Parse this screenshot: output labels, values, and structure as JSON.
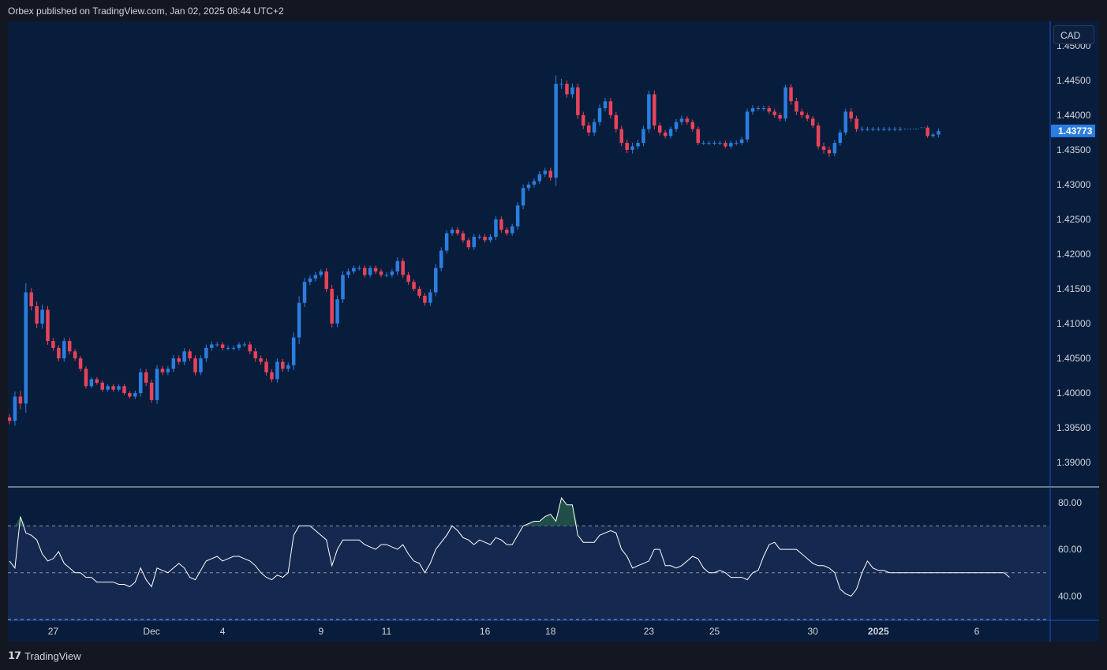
{
  "header": {
    "published": "Orbex published on TradingView.com, Jan 02, 2025 08:44 UTC+2"
  },
  "currency_button": "CAD",
  "footer": {
    "brand": "TradingView"
  },
  "colors": {
    "up": "#2b7ee0",
    "down": "#e8435a",
    "background": "#081d3b",
    "rsi_line": "#ffffff",
    "rsi_band": "#15284f"
  },
  "chart_data": [
    {
      "type": "candlestick",
      "symbol_currency": "CAD",
      "last_price": "1.43773",
      "y_ticks": [
        "1.45000",
        "1.44500",
        "1.44000",
        "1.43500",
        "1.43000",
        "1.42500",
        "1.42000",
        "1.41500",
        "1.41000",
        "1.40500",
        "1.40000",
        "1.39500",
        "1.39000"
      ],
      "ylim": [
        1.3865,
        1.4535
      ],
      "x_ticks": [
        {
          "label": "27",
          "index": 8
        },
        {
          "label": "Dec",
          "index": 26
        },
        {
          "label": "4",
          "index": 39
        },
        {
          "label": "9",
          "index": 57
        },
        {
          "label": "11",
          "index": 69
        },
        {
          "label": "16",
          "index": 87
        },
        {
          "label": "18",
          "index": 99
        },
        {
          "label": "23",
          "index": 117
        },
        {
          "label": "25",
          "index": 129
        },
        {
          "label": "30",
          "index": 147
        },
        {
          "label": "2025",
          "index": 159
        },
        {
          "label": "6",
          "index": 177
        }
      ],
      "x_range": [
        0,
        190
      ],
      "closes": [
        1.396,
        1.3995,
        1.3985,
        1.4145,
        1.4125,
        1.41,
        1.412,
        1.4075,
        1.4065,
        1.405,
        1.4075,
        1.406,
        1.405,
        1.4035,
        1.401,
        1.402,
        1.4015,
        1.4005,
        1.401,
        1.4005,
        1.401,
        1.4,
        1.3995,
        1.4,
        1.403,
        1.4015,
        1.399,
        1.4035,
        1.403,
        1.4035,
        1.405,
        1.4045,
        1.406,
        1.405,
        1.403,
        1.405,
        1.4065,
        1.407,
        1.407,
        1.4065,
        1.4065,
        1.4065,
        1.407,
        1.407,
        1.406,
        1.405,
        1.4045,
        1.403,
        1.402,
        1.4045,
        1.4035,
        1.404,
        1.408,
        1.413,
        1.416,
        1.4165,
        1.417,
        1.4175,
        1.415,
        1.41,
        1.4135,
        1.417,
        1.4175,
        1.418,
        1.418,
        1.417,
        1.418,
        1.4175,
        1.417,
        1.417,
        1.4175,
        1.419,
        1.417,
        1.416,
        1.415,
        1.414,
        1.413,
        1.4145,
        1.418,
        1.4205,
        1.423,
        1.4235,
        1.423,
        1.422,
        1.421,
        1.4225,
        1.4225,
        1.422,
        1.4225,
        1.425,
        1.4235,
        1.423,
        1.424,
        1.427,
        1.4295,
        1.43,
        1.4305,
        1.4315,
        1.432,
        1.431,
        1.4445,
        1.4445,
        1.443,
        1.444,
        1.44,
        1.4385,
        1.4375,
        1.439,
        1.441,
        1.442,
        1.44,
        1.438,
        1.436,
        1.435,
        1.4355,
        1.436,
        1.438,
        1.443,
        1.4385,
        1.4375,
        1.437,
        1.438,
        1.439,
        1.4395,
        1.439,
        1.438,
        1.436,
        1.436,
        1.436,
        1.436,
        1.436,
        1.4355,
        1.436,
        1.436,
        1.4365,
        1.4405,
        1.441,
        1.441,
        1.441,
        1.4405,
        1.44,
        1.4395,
        1.444,
        1.442,
        1.4405,
        1.44,
        1.4395,
        1.4385,
        1.4355,
        1.435,
        1.4345,
        1.436,
        1.4375,
        1.4405,
        1.4395,
        1.438,
        1.438,
        1.438,
        1.438,
        1.438,
        1.438,
        1.438,
        1.438,
        1.438,
        1.438,
        1.438,
        1.438,
        1.4382,
        1.437,
        1.4372,
        1.4377
      ],
      "volatility": [
        8,
        12,
        14,
        22,
        10,
        11,
        12,
        9,
        7,
        7,
        8,
        7,
        6,
        6,
        6,
        5,
        5,
        5,
        5,
        5,
        5,
        5,
        5,
        6,
        9,
        8,
        7,
        9,
        7,
        7,
        8,
        7,
        8,
        6,
        7,
        7,
        8,
        7,
        6,
        6,
        6,
        6,
        6,
        6,
        7,
        8,
        7,
        8,
        7,
        8,
        7,
        7,
        12,
        16,
        10,
        8,
        7,
        6,
        8,
        10,
        9,
        9,
        7,
        6,
        6,
        6,
        6,
        6,
        6,
        6,
        6,
        9,
        7,
        7,
        6,
        6,
        7,
        8,
        9,
        8,
        7,
        6,
        6,
        6,
        6,
        6,
        6,
        6,
        6,
        8,
        7,
        6,
        6,
        8,
        9,
        7,
        7,
        7,
        7,
        7,
        20,
        12,
        8,
        9,
        9,
        8,
        8,
        8,
        9,
        8,
        8,
        8,
        8,
        8,
        9,
        7,
        8,
        9,
        9,
        7,
        6,
        6,
        7,
        7,
        6,
        6,
        6,
        5,
        5,
        5,
        5,
        5,
        5,
        6,
        6,
        7,
        7,
        6,
        6,
        6,
        6,
        6,
        6,
        8,
        8,
        7,
        6,
        6,
        7,
        9,
        8,
        7,
        7,
        7,
        8,
        7,
        6,
        5,
        5,
        5,
        5,
        5,
        5,
        5,
        5,
        5,
        5,
        5,
        5,
        5,
        6,
        5,
        5,
        5
      ],
      "flat_from_index": 164,
      "flat_to_index": 181
    },
    {
      "type": "line",
      "indicator": "RSI",
      "y_ticks": [
        "80.00",
        "60.00",
        "40.00"
      ],
      "ylim": [
        30,
        86
      ],
      "band": [
        30,
        70
      ],
      "midline": 50,
      "overbought_fill": "#1f4f48",
      "values": [
        55,
        52,
        74,
        67,
        66,
        64,
        58,
        55,
        56,
        59,
        54,
        52,
        50,
        50,
        48,
        48,
        46,
        46,
        46,
        46,
        45,
        45,
        44,
        46,
        52,
        47,
        44,
        52,
        51,
        50,
        52,
        54,
        52,
        48,
        47,
        51,
        55,
        56,
        57,
        55,
        56,
        57,
        57,
        56,
        55,
        53,
        50,
        48,
        47,
        49,
        48,
        50,
        66,
        70,
        70,
        70,
        68,
        66,
        64,
        53,
        60,
        64,
        64,
        64,
        64,
        62,
        61,
        60,
        62,
        62,
        61,
        60,
        62,
        58,
        55,
        54,
        50,
        54,
        60,
        63,
        66,
        70,
        68,
        65,
        64,
        62,
        64,
        63,
        62,
        65,
        64,
        62,
        62,
        66,
        70,
        71,
        72,
        72,
        74,
        75,
        72,
        82,
        79,
        79,
        66,
        63,
        63,
        63,
        66,
        67,
        68,
        67,
        60,
        57,
        52,
        53,
        54,
        55,
        60,
        60,
        53,
        53,
        52,
        53,
        55,
        57,
        56,
        52,
        50,
        50,
        51,
        50,
        48,
        48,
        48,
        47,
        50,
        51,
        57,
        62,
        63,
        60,
        60,
        60,
        60,
        58,
        56,
        54,
        53,
        53,
        52,
        50,
        43,
        41,
        40,
        43,
        50,
        55,
        52,
        51,
        51,
        50,
        50,
        50,
        50,
        50,
        50,
        50,
        50,
        50,
        50,
        50,
        50,
        50,
        50,
        50,
        50,
        50,
        50,
        50,
        50,
        50,
        50,
        48,
        48,
        49,
        50
      ],
      "rsi_end_index": 183
    }
  ]
}
